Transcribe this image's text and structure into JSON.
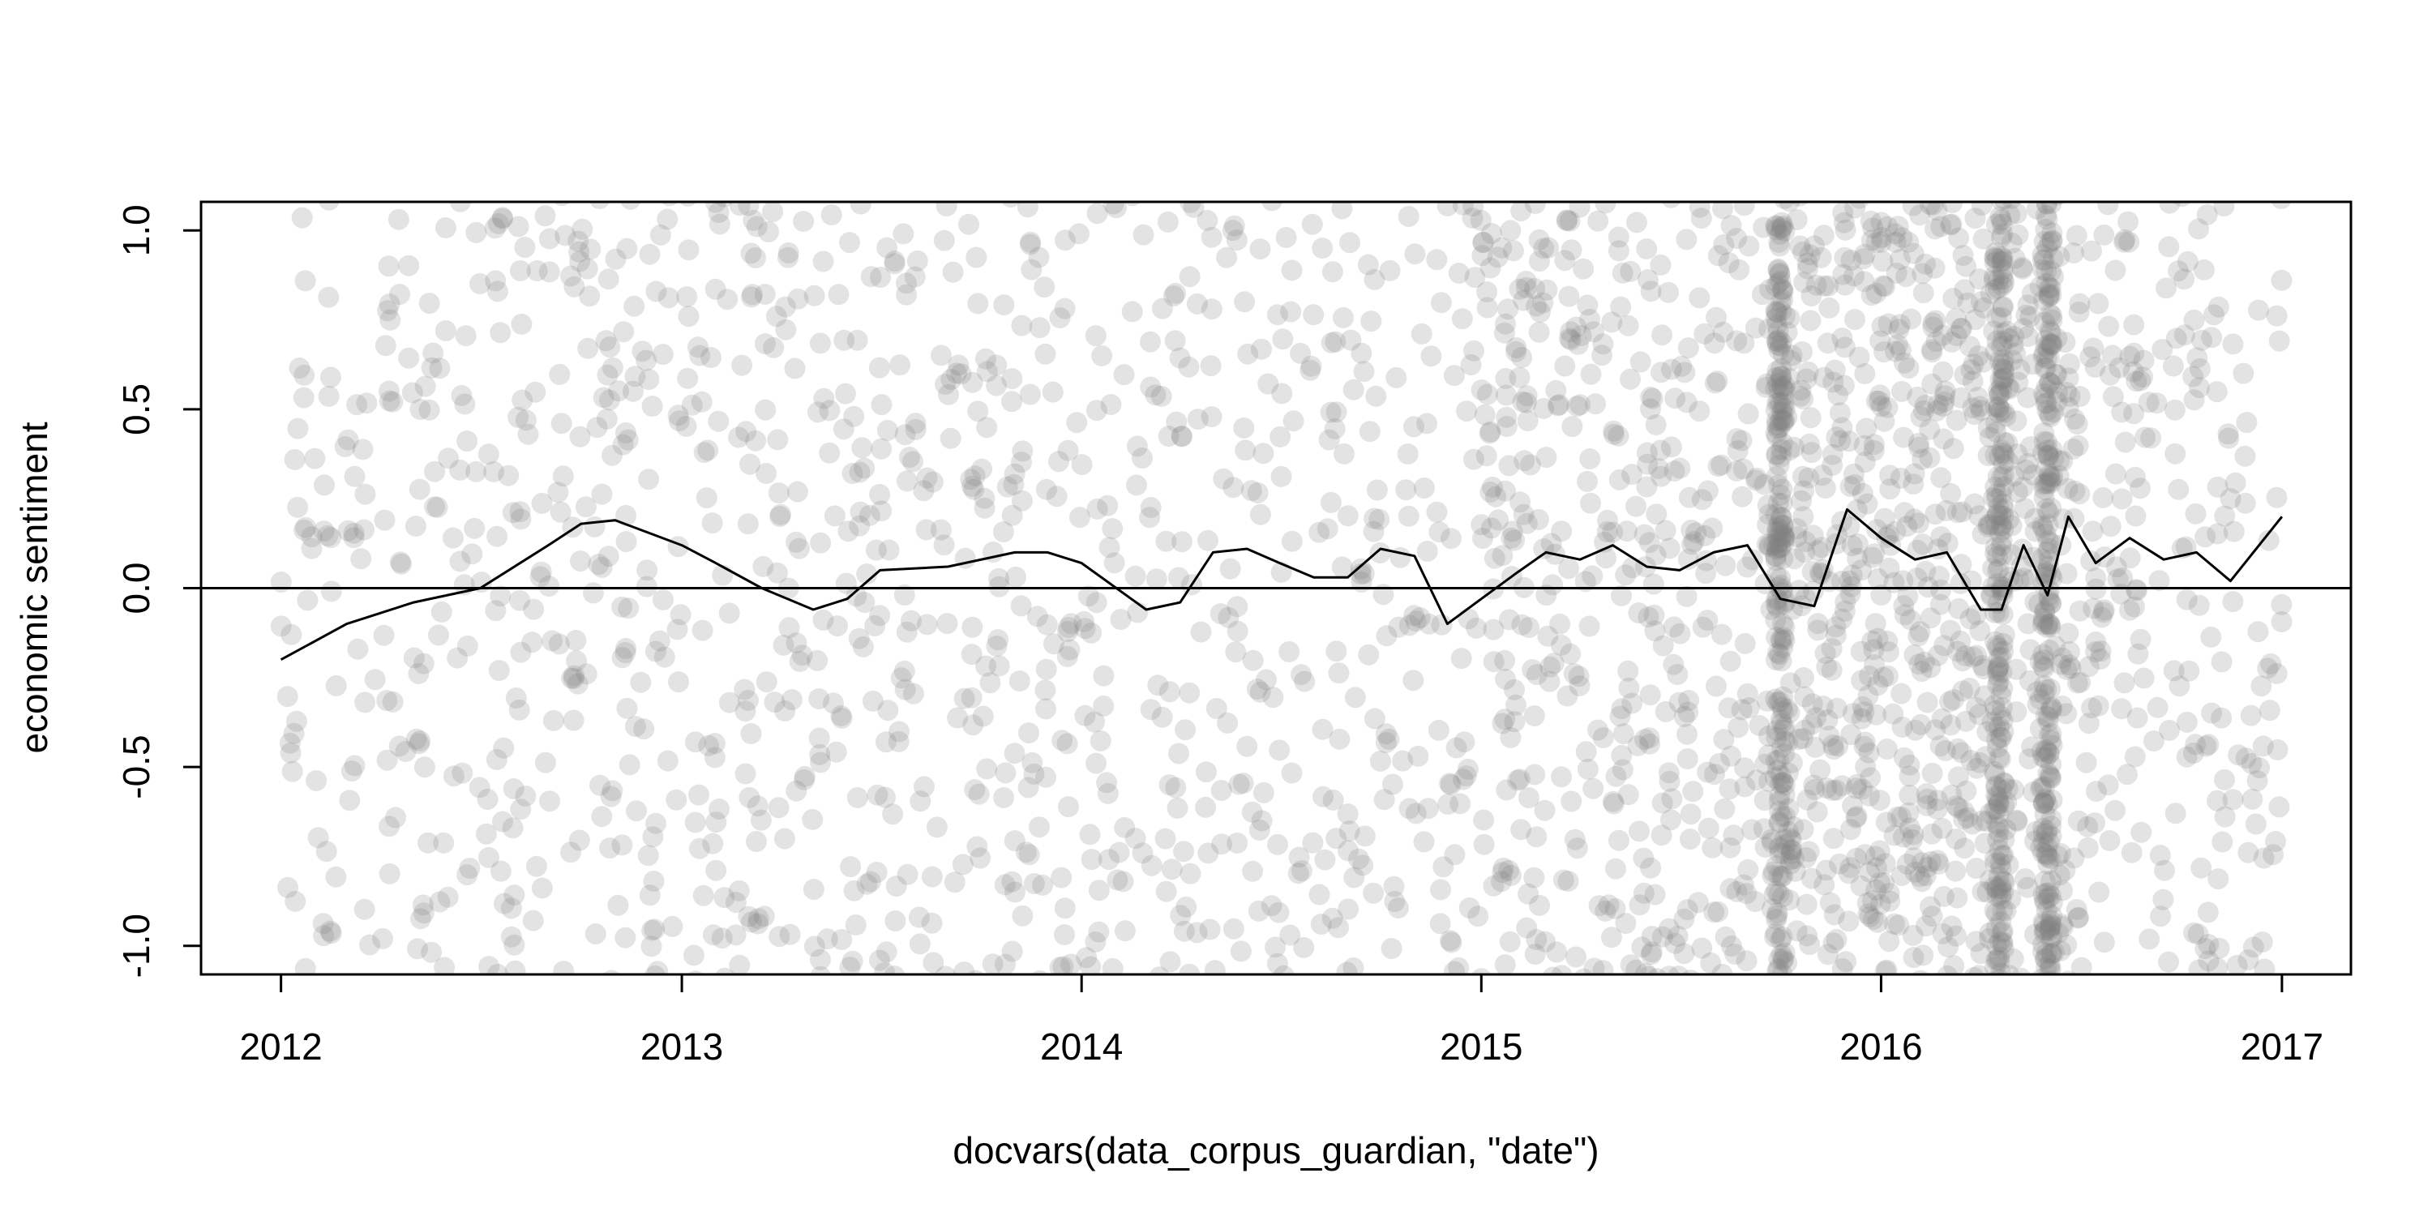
{
  "chart_data": {
    "type": "scatter",
    "title": "",
    "xlabel": "docvars(data_corpus_guardian, \"date\")",
    "ylabel": "economic sentiment",
    "xlim": [
      "2011-10-20",
      "2017-03-05"
    ],
    "ylim": [
      -1.08,
      1.08
    ],
    "x_ticks": [
      "2012",
      "2013",
      "2014",
      "2015",
      "2016",
      "2017"
    ],
    "y_ticks": [
      "-1.0",
      "-0.5",
      "0.0",
      "0.5",
      "1.0"
    ],
    "reference_line": {
      "y": 0
    },
    "point_color": "#808080",
    "line_color": "#000000",
    "grid": false,
    "legend": "none",
    "density_periods": [
      {
        "start": "2012-01-01",
        "end": "2015-01-01",
        "weight": 1.0
      },
      {
        "start": "2015-01-01",
        "end": "2015-09-15",
        "weight": 1.7
      },
      {
        "start": "2015-09-15",
        "end": "2016-07-01",
        "weight": 3.0
      },
      {
        "start": "2016-07-01",
        "end": "2017-01-01",
        "weight": 1.2
      }
    ],
    "dense_dates": [
      "2015-10-01",
      "2016-04-18",
      "2016-06-01"
    ],
    "trend": {
      "x": [
        "2012-01-01",
        "2012-03-01",
        "2012-05-01",
        "2012-07-01",
        "2012-09-01",
        "2012-10-01",
        "2012-11-01",
        "2013-01-01",
        "2013-02-01",
        "2013-03-15",
        "2013-05-01",
        "2013-06-01",
        "2013-07-01",
        "2013-09-01",
        "2013-11-01",
        "2013-12-01",
        "2014-01-01",
        "2014-03-01",
        "2014-04-01",
        "2014-05-01",
        "2014-06-01",
        "2014-07-01",
        "2014-08-01",
        "2014-09-01",
        "2014-10-01",
        "2014-11-01",
        "2014-12-01",
        "2015-01-01",
        "2015-02-01",
        "2015-03-01",
        "2015-04-01",
        "2015-05-01",
        "2015-06-01",
        "2015-07-01",
        "2015-08-01",
        "2015-09-01",
        "2015-10-01",
        "2015-11-01",
        "2015-12-01",
        "2016-01-01",
        "2016-02-01",
        "2016-03-01",
        "2016-04-01",
        "2016-04-20",
        "2016-05-10",
        "2016-06-01",
        "2016-06-20",
        "2016-07-15",
        "2016-08-15",
        "2016-09-15",
        "2016-10-15",
        "2016-11-15",
        "2017-01-01"
      ],
      "y": [
        -0.2,
        -0.1,
        -0.04,
        0.0,
        0.12,
        0.18,
        0.19,
        0.12,
        0.07,
        0.0,
        -0.06,
        -0.03,
        0.05,
        0.06,
        0.1,
        0.1,
        0.07,
        -0.06,
        -0.04,
        0.1,
        0.11,
        0.07,
        0.03,
        0.03,
        0.11,
        0.09,
        -0.1,
        -0.03,
        0.04,
        0.1,
        0.08,
        0.12,
        0.06,
        0.05,
        0.1,
        0.12,
        -0.03,
        -0.05,
        0.22,
        0.14,
        0.08,
        0.1,
        -0.06,
        -0.06,
        0.12,
        -0.02,
        0.2,
        0.07,
        0.14,
        0.08,
        0.1,
        0.02,
        0.2
      ]
    }
  }
}
